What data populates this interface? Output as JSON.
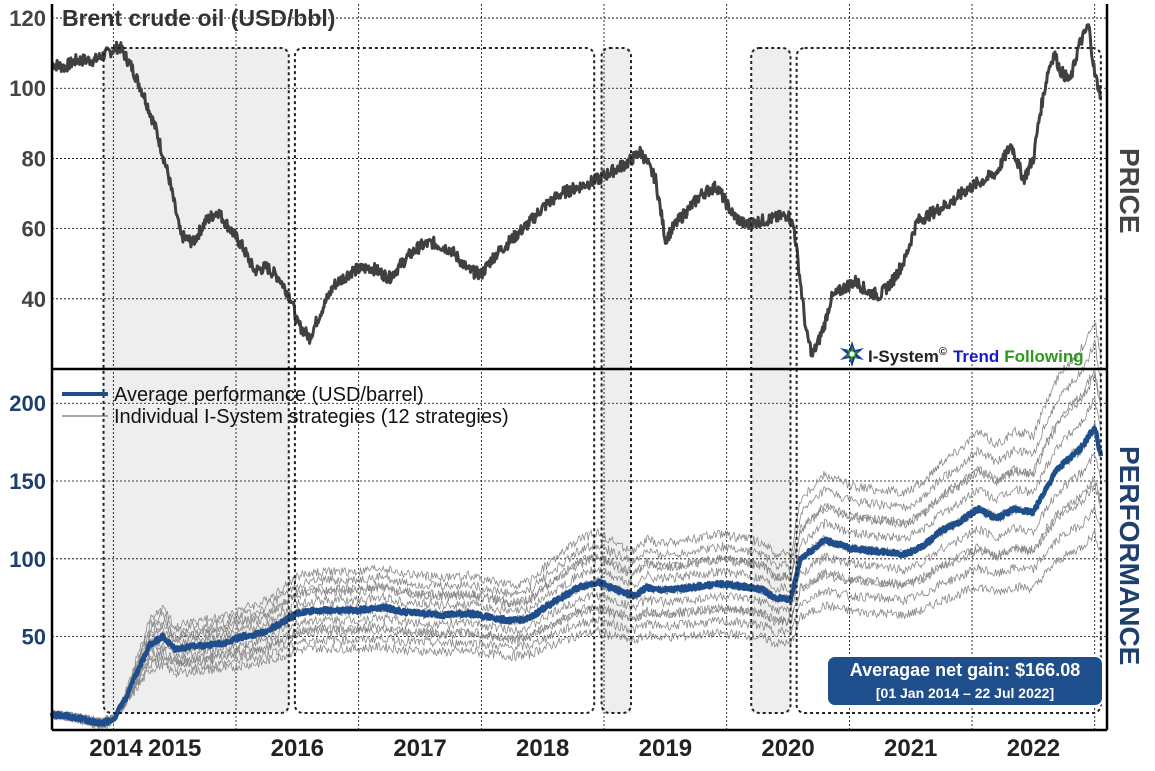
{
  "colors": {
    "price_line": "#404040",
    "avg_line": "#1f4e8c",
    "indiv_line": "#8a8a8a",
    "shade": "#eeeeee",
    "badge": "#1f4e8c",
    "brand_dark": "#222222",
    "brand_blue": "#1a1acc",
    "brand_green": "#2c9a1a"
  },
  "chart_data": [
    {
      "type": "line",
      "name": "price",
      "title": "Brent crude oil (USD/bbl)",
      "side_label": "PRICE",
      "ylim": [
        20,
        124
      ],
      "yticks": [
        40,
        60,
        80,
        100,
        120
      ],
      "xlim": [
        2014.0,
        2022.6
      ],
      "series": [
        {
          "name": "Brent crude oil price",
          "x": [
            2014.0,
            2014.1,
            2014.2,
            2014.35,
            2014.45,
            2014.55,
            2014.65,
            2014.75,
            2014.85,
            2014.95,
            2015.05,
            2015.15,
            2015.25,
            2015.35,
            2015.45,
            2015.55,
            2015.65,
            2015.75,
            2015.85,
            2015.95,
            2016.0,
            2016.1,
            2016.2,
            2016.3,
            2016.45,
            2016.6,
            2016.75,
            2016.9,
            2017.0,
            2017.1,
            2017.25,
            2017.4,
            2017.5,
            2017.6,
            2017.75,
            2017.9,
            2018.0,
            2018.15,
            2018.3,
            2018.45,
            2018.6,
            2018.7,
            2018.8,
            2018.92,
            2019.0,
            2019.1,
            2019.2,
            2019.3,
            2019.42,
            2019.55,
            2019.65,
            2019.75,
            2019.9,
            2020.0,
            2020.05,
            2020.1,
            2020.15,
            2020.2,
            2020.25,
            2020.3,
            2020.35,
            2020.45,
            2020.55,
            2020.65,
            2020.75,
            2020.85,
            2020.95,
            2021.05,
            2021.2,
            2021.35,
            2021.45,
            2021.55,
            2021.7,
            2021.82,
            2021.92,
            2022.0,
            2022.05,
            2022.12,
            2022.17,
            2022.22,
            2022.3,
            2022.37,
            2022.45,
            2022.5,
            2022.55
          ],
          "y": [
            107,
            106,
            108,
            108,
            110,
            112,
            106,
            98,
            88,
            75,
            58,
            56,
            62,
            65,
            60,
            55,
            48,
            49,
            46,
            40,
            33,
            29,
            37,
            44,
            48,
            49,
            46,
            52,
            55,
            56,
            54,
            48,
            47,
            52,
            57,
            62,
            66,
            70,
            72,
            74,
            77,
            79,
            82,
            74,
            57,
            62,
            66,
            70,
            72,
            64,
            61,
            62,
            63,
            64,
            60,
            45,
            30,
            24,
            28,
            33,
            40,
            43,
            45,
            42,
            41,
            45,
            51,
            62,
            65,
            68,
            71,
            73,
            76,
            84,
            74,
            80,
            92,
            105,
            110,
            105,
            102,
            112,
            118,
            104,
            98
          ]
        }
      ]
    },
    {
      "type": "line",
      "name": "performance",
      "side_label": "PERFORMANCE",
      "ylim": [
        -10,
        222
      ],
      "yticks": [
        50,
        100,
        150,
        200
      ],
      "xlim": [
        2014.0,
        2022.6
      ],
      "xtick_labels": [
        "2014",
        "2015",
        "2016",
        "2017",
        "2018",
        "2019",
        "2020",
        "2021",
        "2022"
      ],
      "legend": [
        "Average performance (USD/barrel)",
        "Individual I-System strategies (12 strategies)"
      ],
      "series": [
        {
          "name": "Average performance (USD/barrel)",
          "x": [
            2014.0,
            2014.1,
            2014.2,
            2014.3,
            2014.4,
            2014.5,
            2014.6,
            2014.7,
            2014.8,
            2014.9,
            2015.0,
            2015.2,
            2015.4,
            2015.55,
            2015.7,
            2015.85,
            2016.0,
            2016.15,
            2016.3,
            2016.5,
            2016.7,
            2016.85,
            2017.0,
            2017.2,
            2017.4,
            2017.6,
            2017.75,
            2017.9,
            2018.0,
            2018.15,
            2018.3,
            2018.45,
            2018.6,
            2018.75,
            2018.85,
            2018.92,
            2019.05,
            2019.25,
            2019.45,
            2019.65,
            2019.8,
            2019.9,
            2019.97,
            2020.02,
            2020.1,
            2020.3,
            2020.5,
            2020.7,
            2020.85,
            2020.95,
            2021.1,
            2021.25,
            2021.4,
            2021.55,
            2021.7,
            2021.85,
            2022.0,
            2022.1,
            2022.2,
            2022.3,
            2022.4,
            2022.5,
            2022.55
          ],
          "y": [
            0,
            -1,
            -2,
            -4,
            -6,
            -3,
            10,
            28,
            45,
            50,
            42,
            44,
            46,
            50,
            52,
            58,
            65,
            67,
            67,
            67,
            69,
            66,
            65,
            64,
            65,
            62,
            60,
            62,
            68,
            75,
            82,
            85,
            80,
            76,
            82,
            80,
            80,
            82,
            84,
            82,
            80,
            74,
            75,
            73,
            100,
            112,
            107,
            105,
            104,
            103,
            108,
            118,
            124,
            132,
            126,
            132,
            130,
            145,
            158,
            165,
            172,
            185,
            166
          ]
        }
      ],
      "individual_strategies": 12
    }
  ],
  "header": {
    "title": "Brent crude oil (USD/bbl)"
  },
  "branding": {
    "brand_name": "I-System",
    "copyright": "©",
    "word_trend": "Trend",
    "word_following": "Following"
  },
  "badge": {
    "line1": "Averagae net gain: $166.08",
    "line2": "[01 Jan 2014 – 22 Jul 2022]"
  }
}
